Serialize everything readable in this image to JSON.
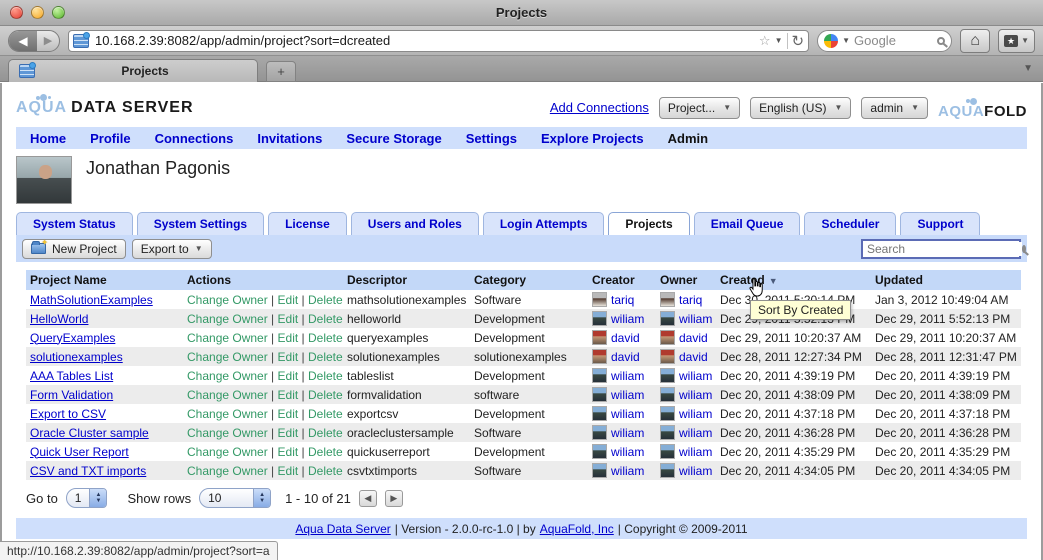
{
  "browser": {
    "window_title": "Projects",
    "url": "10.168.2.39:8082/app/admin/project?sort=dcreated",
    "tab_title": "Projects",
    "new_tab_label": "+",
    "search_engine_placeholder": "Google",
    "status_url": "http://10.168.2.39:8082/app/admin/project?sort=a"
  },
  "header": {
    "logo_aqua": "AQUA",
    "logo_rest": "DATA SERVER",
    "add_connections_label": "Add Connections",
    "project_dropdown_label": "Project...",
    "language_dropdown_label": "English (US)",
    "user_dropdown_label": "admin",
    "aquafold_aqua": "AQUA",
    "aquafold_fold": "FOLD"
  },
  "nav": {
    "items": [
      "Home",
      "Profile",
      "Connections",
      "Invitations",
      "Secure Storage",
      "Settings",
      "Explore Projects",
      "Admin"
    ],
    "active": "Admin"
  },
  "user": {
    "name": "Jonathan Pagonis"
  },
  "tabs": {
    "items": [
      "System Status",
      "System Settings",
      "License",
      "Users and Roles",
      "Login Attempts",
      "Projects",
      "Email Queue",
      "Scheduler",
      "Support"
    ],
    "active": "Projects"
  },
  "toolbar": {
    "new_project_label": "New Project",
    "export_to_label": "Export to",
    "search_placeholder": "Search"
  },
  "table": {
    "columns": [
      "Project Name",
      "Actions",
      "Descriptor",
      "Category",
      "Creator",
      "Owner",
      "Created",
      "Updated"
    ],
    "sort_column": "Created",
    "sort_direction": "desc",
    "actions": [
      "Change Owner",
      "Edit",
      "Delete"
    ],
    "avatars": {
      "tariq": [
        "#b9b9b9",
        "#4a3226",
        "#e8e4dc"
      ],
      "wiliam": [
        "#85aed6",
        "#3a4a42",
        "#26303a"
      ],
      "david": [
        "#b03a2e",
        "#c99a77",
        "#6b5a4a"
      ]
    },
    "rows": [
      {
        "name": "MathSolutionExamples",
        "descriptor": "mathsolutionexamples",
        "category": "Software",
        "creator": "tariq",
        "owner": "tariq",
        "created": "Dec 30, 2011 5:20:14 PM",
        "updated": "Jan 3, 2012 10:49:04 AM"
      },
      {
        "name": "HelloWorld",
        "descriptor": "helloworld",
        "category": "Development",
        "creator": "wiliam",
        "owner": "wiliam",
        "created": "Dec 29, 2011 5:52:13 PM",
        "updated": "Dec 29, 2011 5:52:13 PM"
      },
      {
        "name": "QueryExamples",
        "descriptor": "queryexamples",
        "category": "Development",
        "creator": "david",
        "owner": "david",
        "created": "Dec 29, 2011 10:20:37 AM",
        "updated": "Dec 29, 2011 10:20:37 AM"
      },
      {
        "name": "solutionexamples",
        "descriptor": "solutionexamples",
        "category": "solutionexamples",
        "creator": "david",
        "owner": "david",
        "created": "Dec 28, 2011 12:27:34 PM",
        "updated": "Dec 28, 2011 12:31:47 PM"
      },
      {
        "name": "AAA Tables List",
        "descriptor": "tableslist",
        "category": "Development",
        "creator": "wiliam",
        "owner": "wiliam",
        "created": "Dec 20, 2011 4:39:19 PM",
        "updated": "Dec 20, 2011 4:39:19 PM"
      },
      {
        "name": "Form Validation",
        "descriptor": "formvalidation",
        "category": "software",
        "creator": "wiliam",
        "owner": "wiliam",
        "created": "Dec 20, 2011 4:38:09 PM",
        "updated": "Dec 20, 2011 4:38:09 PM"
      },
      {
        "name": "Export to CSV",
        "descriptor": "exportcsv",
        "category": "Development",
        "creator": "wiliam",
        "owner": "wiliam",
        "created": "Dec 20, 2011 4:37:18 PM",
        "updated": "Dec 20, 2011 4:37:18 PM"
      },
      {
        "name": "Oracle Cluster sample",
        "descriptor": "oracleclustersample",
        "category": "Software",
        "creator": "wiliam",
        "owner": "wiliam",
        "created": "Dec 20, 2011 4:36:28 PM",
        "updated": "Dec 20, 2011 4:36:28 PM"
      },
      {
        "name": "Quick User Report",
        "descriptor": "quickuserreport",
        "category": "Development",
        "creator": "wiliam",
        "owner": "wiliam",
        "created": "Dec 20, 2011 4:35:29 PM",
        "updated": "Dec 20, 2011 4:35:29 PM"
      },
      {
        "name": "CSV and TXT imports",
        "descriptor": "csvtxtimports",
        "category": "Software",
        "creator": "wiliam",
        "owner": "wiliam",
        "created": "Dec 20, 2011 4:34:05 PM",
        "updated": "Dec 20, 2011 4:34:05 PM"
      }
    ]
  },
  "tooltip": {
    "text": "Sort By Created"
  },
  "pagination": {
    "go_to_label": "Go to",
    "go_to_value": "1",
    "show_rows_label": "Show rows",
    "show_rows_value": "10",
    "range_text": "1 - 10 of 21"
  },
  "footer": {
    "link1": "Aqua Data Server",
    "sep1": "| Version - 2.0.0-rc-1.0 | by",
    "link2": "AquaFold, Inc",
    "sep2": "| Copyright © 2009-2011"
  },
  "colors": {
    "accent_blue_bar": "#cfdffc",
    "table_header": "#c3d8f8",
    "link_blue": "#0000cc",
    "action_green": "#339966",
    "tooltip_bg": "#ffffd5",
    "row_alt": "#ececec"
  }
}
